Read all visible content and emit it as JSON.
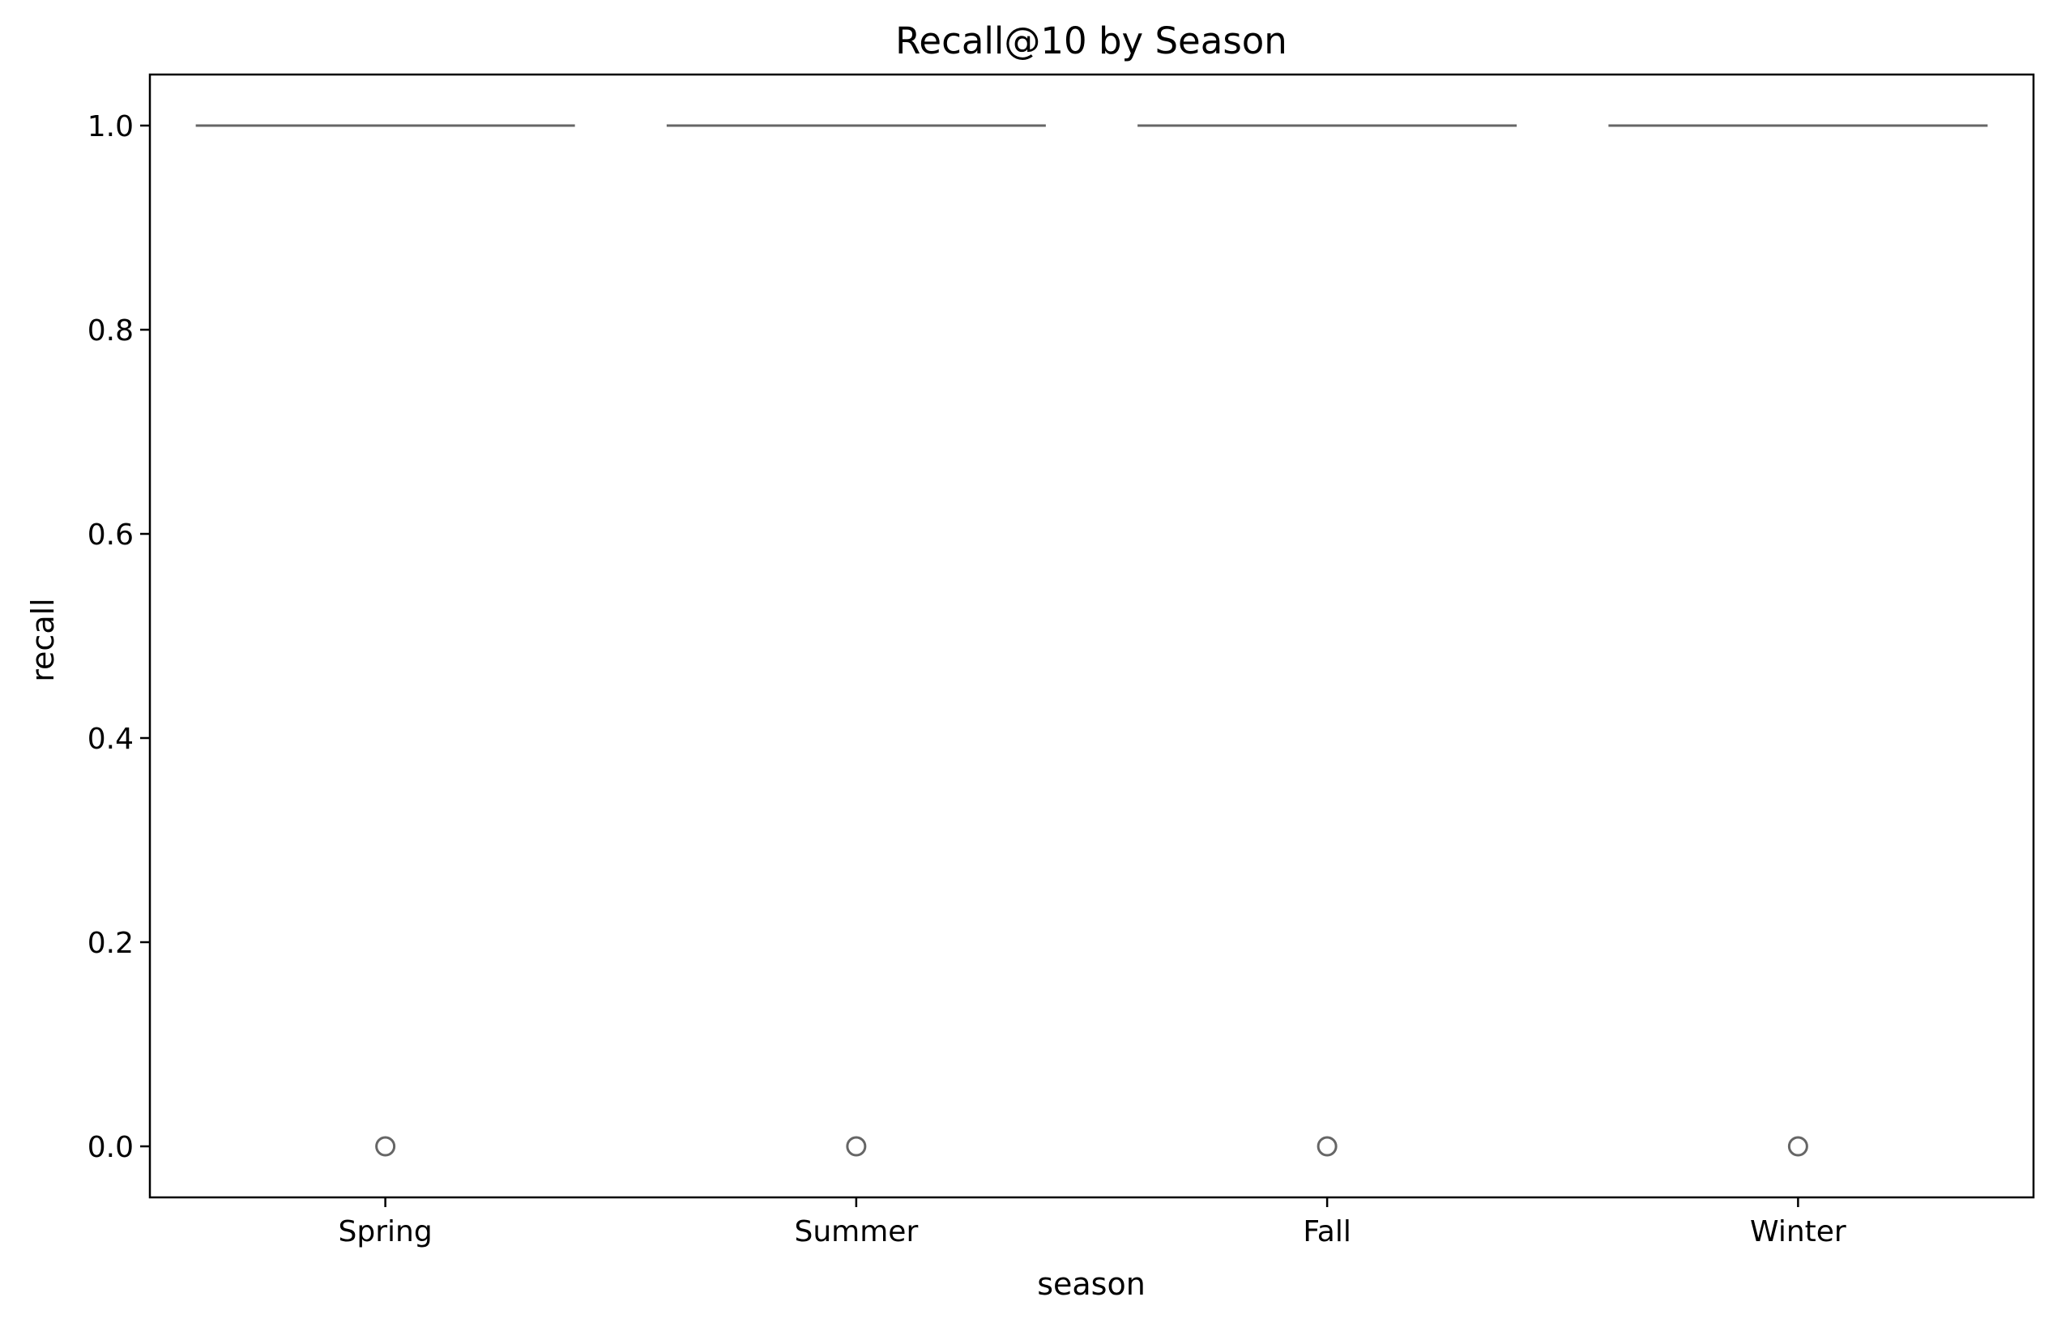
{
  "chart_data": {
    "type": "box",
    "title": "Recall@10 by Season",
    "xlabel": "season",
    "ylabel": "recall",
    "categories": [
      "Spring",
      "Summer",
      "Fall",
      "Winter"
    ],
    "ylim": [
      -0.05,
      1.05
    ],
    "yticks": [
      0.0,
      0.2,
      0.4,
      0.6,
      0.8,
      1.0
    ],
    "ytick_labels": [
      "0.0",
      "0.2",
      "0.4",
      "0.6",
      "0.8",
      "1.0"
    ],
    "boxes": [
      {
        "category": "Spring",
        "q1": 1.0,
        "median": 1.0,
        "q3": 1.0,
        "whisker_low": 1.0,
        "whisker_high": 1.0,
        "outliers": [
          0.0
        ]
      },
      {
        "category": "Summer",
        "q1": 1.0,
        "median": 1.0,
        "q3": 1.0,
        "whisker_low": 1.0,
        "whisker_high": 1.0,
        "outliers": [
          0.0
        ]
      },
      {
        "category": "Fall",
        "q1": 1.0,
        "median": 1.0,
        "q3": 1.0,
        "whisker_low": 1.0,
        "whisker_high": 1.0,
        "outliers": [
          0.0
        ]
      },
      {
        "category": "Winter",
        "q1": 1.0,
        "median": 1.0,
        "q3": 1.0,
        "whisker_low": 1.0,
        "whisker_high": 1.0,
        "outliers": [
          0.0
        ]
      }
    ],
    "grid": false,
    "colors": {
      "box_line": "#666666",
      "axis": "#000000",
      "background": "#ffffff"
    }
  }
}
